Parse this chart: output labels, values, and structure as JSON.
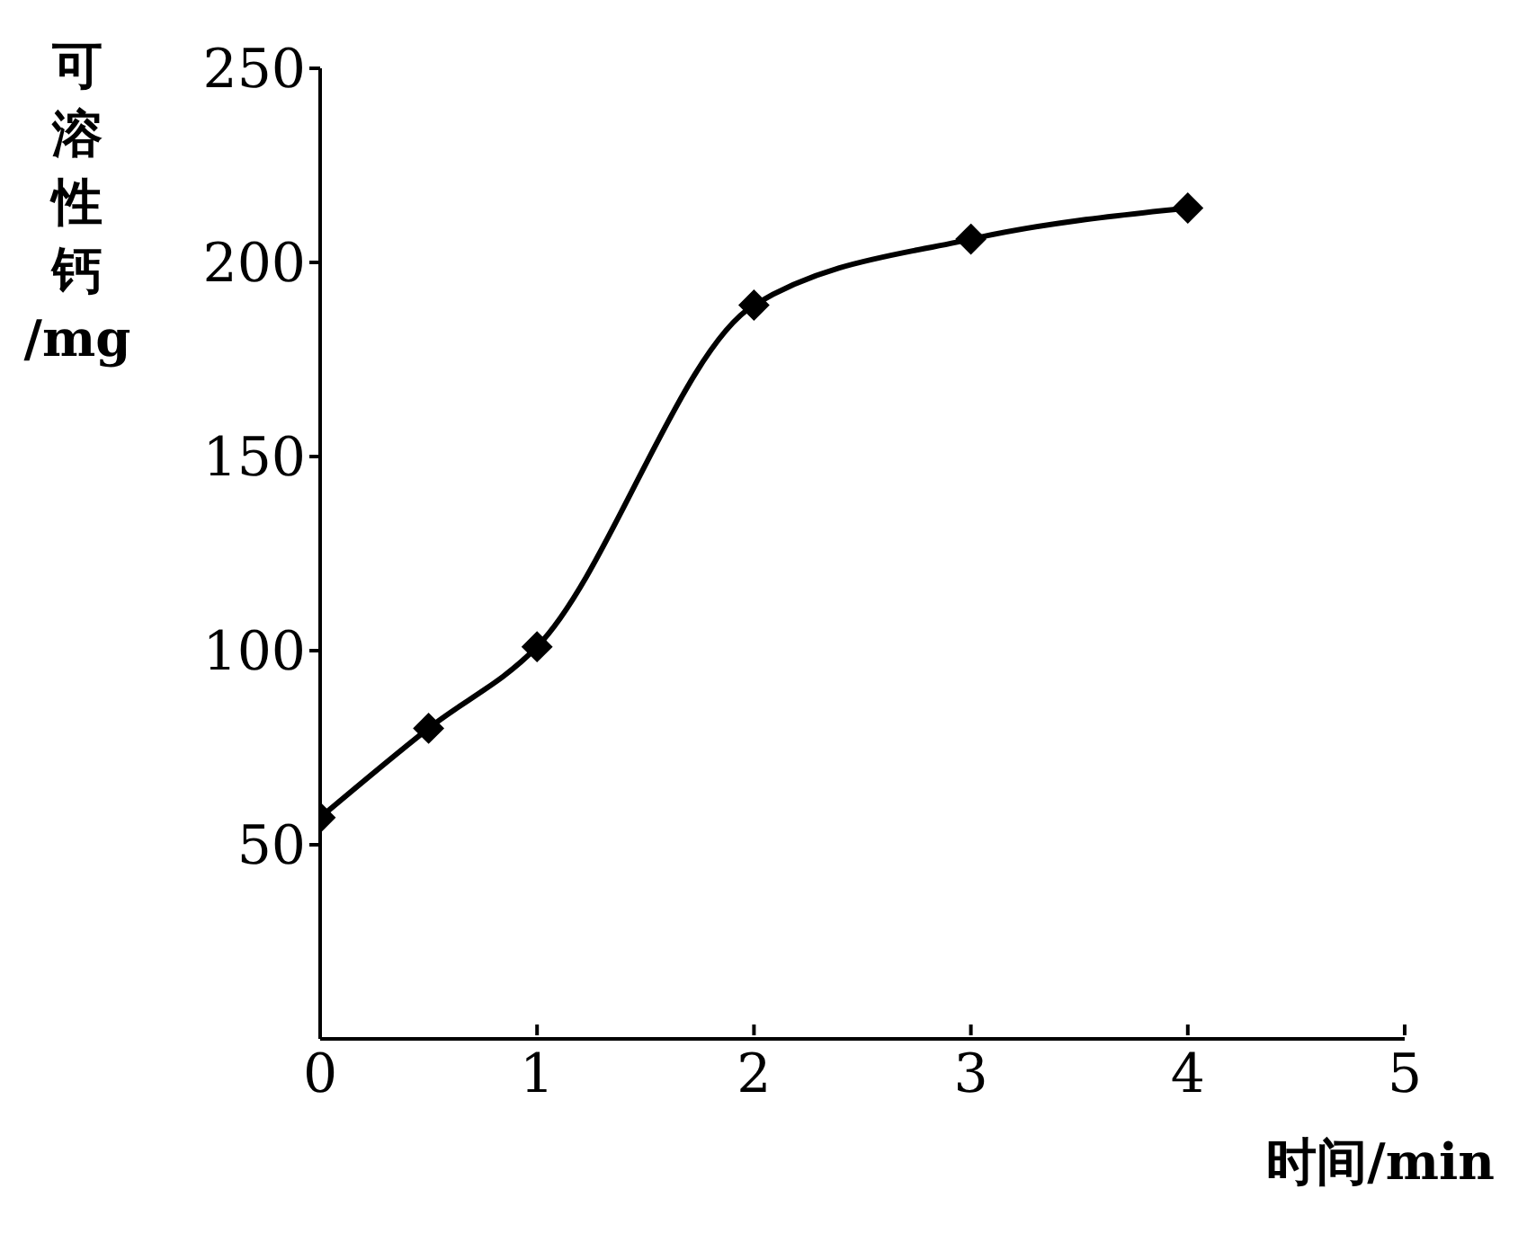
{
  "chart_data": {
    "type": "line",
    "xlabel": "时间/min",
    "ylabel": "可溶性钙/mg",
    "x": [
      0,
      0.5,
      1,
      2,
      3,
      4
    ],
    "series": [
      {
        "color": "#000000",
        "values": [
          57,
          80,
          101,
          189,
          206,
          214
        ]
      }
    ],
    "xlim": [
      0,
      5
    ],
    "xticks": [
      0,
      1,
      2,
      3,
      4,
      5
    ],
    "ylim": [
      0,
      250
    ],
    "yticks": [
      50,
      100,
      150,
      200,
      250
    ],
    "grid": false,
    "legend": false,
    "marker": "diamond",
    "line_style": "solid"
  }
}
